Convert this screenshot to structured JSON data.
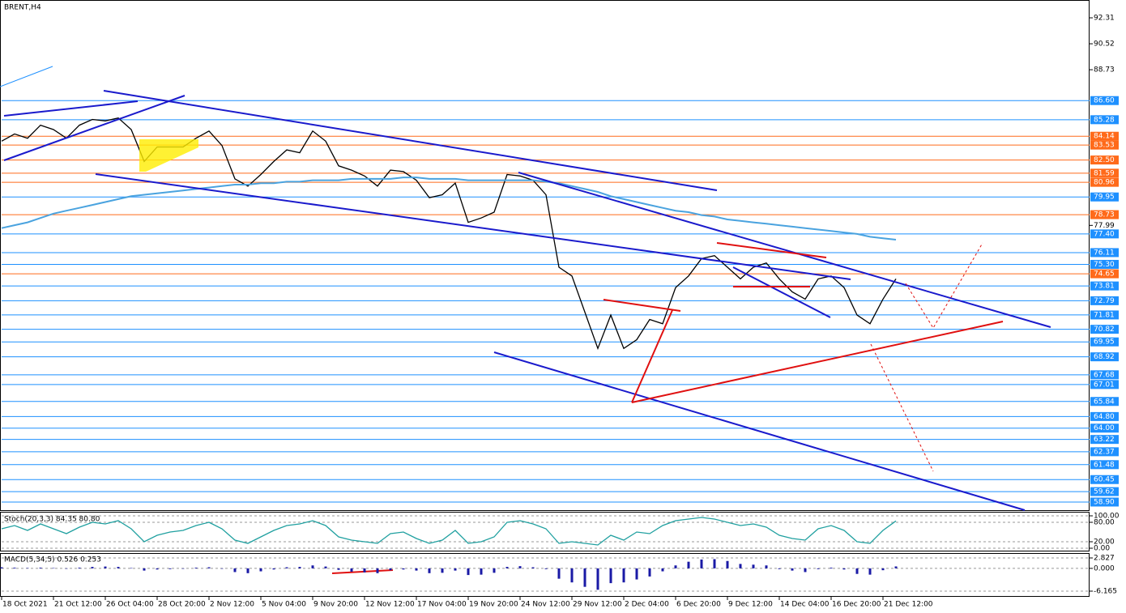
{
  "chart_data": [
    {
      "type": "line",
      "title": "BRENT,H4",
      "x": [
        0,
        4,
        8,
        12,
        16,
        20,
        24,
        28,
        32,
        36,
        40,
        44,
        48,
        52,
        56,
        60,
        64,
        68,
        72,
        76,
        80,
        84,
        88,
        92,
        96,
        100,
        104,
        108,
        112,
        116,
        120,
        124,
        128,
        132,
        136,
        140,
        144,
        148,
        152,
        156,
        160,
        164,
        168,
        172,
        176,
        180,
        184,
        188,
        192,
        196,
        200,
        204,
        208,
        212,
        216,
        220,
        224,
        228,
        232,
        236,
        240,
        244,
        248,
        252,
        256,
        260,
        264,
        268,
        272,
        276
      ],
      "series": [
        {
          "color": "#000000",
          "values": [
            83.8,
            84.3,
            84.0,
            84.9,
            84.6,
            84.0,
            84.9,
            85.3,
            85.2,
            85.4,
            84.6,
            82.4,
            83.4,
            83.4,
            83.4,
            84.0,
            84.5,
            83.5,
            81.2,
            80.7,
            81.5,
            82.4,
            83.2,
            83.0,
            84.5,
            83.8,
            82.1,
            81.8,
            81.4,
            80.7,
            81.8,
            81.7,
            81.1,
            79.9,
            80.1,
            80.9,
            78.2,
            78.5,
            78.9,
            81.5,
            81.4,
            81.1,
            80.1,
            75.1,
            74.5,
            72.0,
            69.5,
            71.8,
            69.5,
            70.1,
            71.5,
            71.2,
            73.7,
            74.5,
            75.7,
            75.9,
            75.1,
            74.3,
            75.1,
            75.4,
            74.3,
            73.4,
            72.9,
            74.3,
            74.5,
            73.7,
            71.8,
            71.2,
            72.9,
            74.3
          ]
        },
        {
          "color": "#4aa3df",
          "values": [
            77.8,
            78.0,
            78.2,
            78.5,
            78.8,
            79.0,
            79.2,
            79.4,
            79.6,
            79.8,
            80.0,
            80.1,
            80.2,
            80.3,
            80.4,
            80.5,
            80.6,
            80.7,
            80.8,
            80.8,
            80.9,
            80.9,
            81.0,
            81.0,
            81.1,
            81.1,
            81.1,
            81.2,
            81.2,
            81.2,
            81.2,
            81.3,
            81.3,
            81.2,
            81.2,
            81.2,
            81.1,
            81.1,
            81.1,
            81.1,
            81.1,
            81.1,
            81.0,
            80.9,
            80.7,
            80.5,
            80.3,
            80.0,
            79.8,
            79.6,
            79.4,
            79.2,
            79.0,
            78.9,
            78.7,
            78.6,
            78.4,
            78.3,
            78.2,
            78.1,
            78.0,
            77.9,
            77.8,
            77.7,
            77.6,
            77.5,
            77.4,
            77.2,
            77.1,
            77.0
          ]
        }
      ],
      "xlim": [
        0,
        335.75
      ],
      "ylim": [
        58.34,
        93.54
      ],
      "xticks": [
        {
          "value": 0,
          "label": "18 Oct 2021"
        },
        {
          "value": 16,
          "label": "21 Oct 12:00"
        },
        {
          "value": 32,
          "label": "26 Oct 04:00"
        },
        {
          "value": 48,
          "label": "28 Oct 20:00"
        },
        {
          "value": 64,
          "label": "2 Nov 12:00"
        },
        {
          "value": 80,
          "label": "5 Nov 04:00"
        },
        {
          "value": 96,
          "label": "9 Nov 20:00"
        },
        {
          "value": 112,
          "label": "12 Nov 12:00"
        },
        {
          "value": 128,
          "label": "17 Nov 04:00"
        },
        {
          "value": 144,
          "label": "19 Nov 20:00"
        },
        {
          "value": 160,
          "label": "24 Nov 12:00"
        },
        {
          "value": 176,
          "label": "29 Nov 12:00"
        },
        {
          "value": 192,
          "label": "2 Dec 04:00"
        },
        {
          "value": 208,
          "label": "6 Dec 20:00"
        },
        {
          "value": 224,
          "label": "9 Dec 12:00"
        },
        {
          "value": 240,
          "label": "14 Dec 04:00"
        },
        {
          "value": 256,
          "label": "16 Dec 20:00"
        },
        {
          "value": 272,
          "label": "21 Dec 12:00"
        }
      ],
      "yticks": [
        92.31,
        90.52,
        88.73,
        77.99
      ],
      "levels": [
        {
          "value": 86.6,
          "label": "86.60",
          "color": "#1e90ff"
        },
        {
          "value": 85.28,
          "label": "85.28",
          "color": "#1e90ff"
        },
        {
          "value": 84.14,
          "label": "84.14",
          "color": "#ff6a1a"
        },
        {
          "value": 83.53,
          "label": "83.53",
          "color": "#ff6a1a"
        },
        {
          "value": 82.5,
          "label": "82.50",
          "color": "#ff6a1a"
        },
        {
          "value": 81.59,
          "label": "81.59",
          "color": "#ff6a1a"
        },
        {
          "value": 80.96,
          "label": "80.96",
          "color": "#ff6a1a"
        },
        {
          "value": 79.95,
          "label": "79.95",
          "color": "#1e90ff"
        },
        {
          "value": 78.73,
          "label": "78.73",
          "color": "#ff6a1a"
        },
        {
          "value": 77.4,
          "label": "77.40",
          "color": "#1e90ff"
        },
        {
          "value": 76.11,
          "label": "76.11",
          "color": "#1e90ff"
        },
        {
          "value": 75.3,
          "label": "75.30",
          "color": "#1e90ff"
        },
        {
          "value": 74.65,
          "label": "74.65",
          "color": "#ff6a1a"
        },
        {
          "value": 73.81,
          "label": "73.81",
          "color": "#1e90ff"
        },
        {
          "value": 72.79,
          "label": "72.79",
          "color": "#1e90ff"
        },
        {
          "value": 71.81,
          "label": "71.81",
          "color": "#1e90ff"
        },
        {
          "value": 70.82,
          "label": "70.82",
          "color": "#1e90ff"
        },
        {
          "value": 69.95,
          "label": "69.95",
          "color": "#1e90ff"
        },
        {
          "value": 68.92,
          "label": "68.92",
          "color": "#1e90ff"
        },
        {
          "value": 67.68,
          "label": "67.68",
          "color": "#1e90ff"
        },
        {
          "value": 67.01,
          "label": "67.01",
          "color": "#1e90ff"
        },
        {
          "value": 65.84,
          "label": "65.84",
          "color": "#1e90ff"
        },
        {
          "value": 64.8,
          "label": "64.80",
          "color": "#1e90ff"
        },
        {
          "value": 64,
          "label": "64.00",
          "color": "#1e90ff"
        },
        {
          "value": 63.22,
          "label": "63.22",
          "color": "#1e90ff"
        },
        {
          "value": 62.37,
          "label": "62.37",
          "color": "#1e90ff"
        },
        {
          "value": 61.48,
          "label": "61.48",
          "color": "#1e90ff"
        },
        {
          "value": 60.45,
          "label": "60.45",
          "color": "#1e90ff"
        },
        {
          "value": 59.62,
          "label": "59.62",
          "color": "#1e90ff"
        },
        {
          "value": 58.9,
          "label": "58.90",
          "color": "#1e90ff"
        }
      ]
    },
    {
      "type": "line",
      "title": "Stoch(20,3,3) 84.35 80.80",
      "x": [
        0,
        4,
        8,
        12,
        16,
        20,
        24,
        28,
        32,
        36,
        40,
        44,
        48,
        52,
        56,
        60,
        64,
        68,
        72,
        76,
        80,
        84,
        88,
        92,
        96,
        100,
        104,
        108,
        112,
        116,
        120,
        124,
        128,
        132,
        136,
        140,
        144,
        148,
        152,
        156,
        160,
        164,
        168,
        172,
        176,
        180,
        184,
        188,
        192,
        196,
        200,
        204,
        208,
        212,
        216,
        220,
        224,
        228,
        232,
        236,
        240,
        244,
        248,
        252,
        256,
        260,
        264,
        268,
        272,
        276
      ],
      "series": [
        {
          "color": "#20a0a0",
          "values": [
            60,
            70,
            55,
            75,
            60,
            45,
            65,
            80,
            75,
            85,
            60,
            20,
            40,
            50,
            55,
            70,
            80,
            60,
            25,
            15,
            35,
            55,
            70,
            75,
            85,
            70,
            35,
            25,
            20,
            15,
            45,
            50,
            30,
            15,
            25,
            55,
            15,
            20,
            35,
            80,
            85,
            75,
            60,
            15,
            20,
            15,
            10,
            40,
            25,
            50,
            45,
            70,
            85,
            90,
            95,
            90,
            80,
            70,
            75,
            65,
            40,
            30,
            25,
            60,
            70,
            55,
            20,
            15,
            55,
            84.35
          ]
        }
      ],
      "xlim": [
        0,
        335.75
      ],
      "ylim": [
        0,
        100
      ],
      "yticks": [
        {
          "value": 100,
          "label": "100.00"
        },
        {
          "value": 80,
          "label": "80.00"
        },
        {
          "value": 20,
          "label": "20.00"
        },
        {
          "value": 0,
          "label": "0.00"
        }
      ]
    },
    {
      "type": "bar",
      "title": "MACD(5,34,5) 0.526 0.253",
      "x": [
        0,
        4,
        8,
        12,
        16,
        20,
        24,
        28,
        32,
        36,
        40,
        44,
        48,
        52,
        56,
        60,
        64,
        68,
        72,
        76,
        80,
        84,
        88,
        92,
        96,
        100,
        104,
        108,
        112,
        116,
        120,
        124,
        128,
        132,
        136,
        140,
        144,
        148,
        152,
        156,
        160,
        164,
        168,
        172,
        176,
        180,
        184,
        188,
        192,
        196,
        200,
        204,
        208,
        212,
        216,
        220,
        224,
        228,
        232,
        236,
        240,
        244,
        248,
        252,
        256,
        260,
        264,
        268,
        272,
        276
      ],
      "values": [
        0.3,
        0.2,
        0.1,
        0.2,
        0.1,
        0.0,
        0.2,
        0.4,
        0.5,
        0.4,
        0.1,
        -0.6,
        -0.3,
        -0.2,
        -0.1,
        0.2,
        0.3,
        -0.1,
        -1.0,
        -1.3,
        -0.8,
        -0.3,
        0.3,
        0.4,
        0.8,
        0.5,
        -0.4,
        -0.9,
        -1.1,
        -1.3,
        -0.5,
        -0.3,
        -0.6,
        -1.3,
        -1.2,
        -0.6,
        -1.8,
        -1.7,
        -1.2,
        0.4,
        0.6,
        0.3,
        -0.2,
        -2.8,
        -3.8,
        -5.0,
        -5.8,
        -4.0,
        -3.8,
        -3.0,
        -2.2,
        -0.8,
        0.8,
        1.8,
        2.4,
        2.5,
        2.0,
        1.2,
        1.0,
        0.8,
        -0.2,
        -0.6,
        -1.0,
        -0.2,
        0.2,
        -0.3,
        -1.5,
        -1.7,
        -0.5,
        0.526
      ],
      "color": "#1a1aa6",
      "xlim": [
        0,
        335.75
      ],
      "ylim": [
        -7.7,
        4.14
      ],
      "yticks": [
        {
          "value": 2.827,
          "label": "2.827"
        },
        {
          "value": 0,
          "label": "0.000"
        },
        {
          "value": -6.165,
          "label": "-6.165"
        }
      ]
    }
  ]
}
